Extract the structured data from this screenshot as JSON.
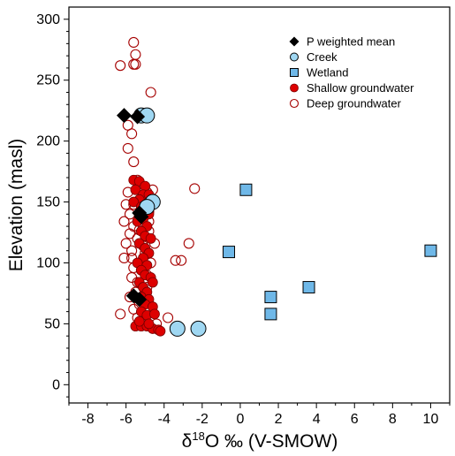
{
  "chart_data": {
    "type": "scatter",
    "xlabel": {
      "delta": "δ",
      "sup": "18",
      "rest": "O ‰ (V-SMOW)"
    },
    "ylabel": "Elevation (masl)",
    "xlim": [
      -9,
      11
    ],
    "ylim": [
      -15,
      310
    ],
    "xticks": [
      -8,
      -6,
      -4,
      -2,
      0,
      2,
      4,
      6,
      8,
      10
    ],
    "yticks": [
      0,
      50,
      100,
      150,
      200,
      250,
      300
    ],
    "legend_position": "top-right",
    "series": [
      {
        "name": "Deep groundwater",
        "marker": "circle-open",
        "color": "#a50000",
        "points": [
          [
            -5.6,
            281
          ],
          [
            -5.5,
            271
          ],
          [
            -5.5,
            263
          ],
          [
            -5.6,
            263
          ],
          [
            -6.3,
            262
          ],
          [
            -4.7,
            240
          ],
          [
            -5.9,
            213
          ],
          [
            -5.7,
            206
          ],
          [
            -5.9,
            194
          ],
          [
            -5.6,
            183
          ],
          [
            -5.4,
            168
          ],
          [
            -5.2,
            163
          ],
          [
            -5.9,
            158
          ],
          [
            -4.9,
            158
          ],
          [
            -4.6,
            160
          ],
          [
            -2.4,
            161
          ],
          [
            -6.0,
            148
          ],
          [
            -5.6,
            148
          ],
          [
            -5.1,
            146
          ],
          [
            -4.8,
            142
          ],
          [
            -5.8,
            140
          ],
          [
            -5.2,
            136
          ],
          [
            -4.8,
            134
          ],
          [
            -6.1,
            134
          ],
          [
            -5.6,
            130
          ],
          [
            -5.3,
            127
          ],
          [
            -4.8,
            126
          ],
          [
            -5.8,
            124
          ],
          [
            -5.4,
            120
          ],
          [
            -4.5,
            116
          ],
          [
            -6.0,
            116
          ],
          [
            -5.1,
            114
          ],
          [
            -5.7,
            110
          ],
          [
            -2.7,
            116
          ],
          [
            -5.0,
            108
          ],
          [
            -6.1,
            104
          ],
          [
            -5.7,
            104
          ],
          [
            -3.4,
            102
          ],
          [
            -3.1,
            102
          ],
          [
            -5.3,
            100
          ],
          [
            -4.7,
            100
          ],
          [
            -5.6,
            96
          ],
          [
            -5.2,
            94
          ],
          [
            -4.9,
            90
          ],
          [
            -5.7,
            88
          ],
          [
            -5.4,
            84
          ],
          [
            -4.9,
            80
          ],
          [
            -5.5,
            76
          ],
          [
            -5.8,
            72
          ],
          [
            -5.1,
            70
          ],
          [
            -5.3,
            66
          ],
          [
            -5.6,
            62
          ],
          [
            -4.8,
            60
          ],
          [
            -6.3,
            58
          ],
          [
            -5.0,
            57
          ],
          [
            -5.4,
            55
          ],
          [
            -3.8,
            55
          ],
          [
            -4.4,
            50
          ],
          [
            -5.1,
            50
          ]
        ]
      },
      {
        "name": "Shallow groundwater",
        "marker": "circle-filled",
        "color": "#dd0000",
        "points": [
          [
            -5.6,
            168
          ],
          [
            -5.3,
            167
          ],
          [
            -5.0,
            163
          ],
          [
            -5.5,
            160
          ],
          [
            -5.1,
            156
          ],
          [
            -4.8,
            156
          ],
          [
            -5.3,
            152
          ],
          [
            -5.6,
            150
          ],
          [
            -5.2,
            146
          ],
          [
            -5.0,
            143
          ],
          [
            -4.8,
            140
          ],
          [
            -5.1,
            136
          ],
          [
            -5.4,
            134
          ],
          [
            -4.9,
            130
          ],
          [
            -5.2,
            126
          ],
          [
            -5.0,
            122
          ],
          [
            -4.7,
            120
          ],
          [
            -5.3,
            116
          ],
          [
            -5.0,
            112
          ],
          [
            -4.8,
            108
          ],
          [
            -5.1,
            104
          ],
          [
            -5.4,
            100
          ],
          [
            -4.9,
            98
          ],
          [
            -5.2,
            94
          ],
          [
            -5.0,
            90
          ],
          [
            -4.7,
            88
          ],
          [
            -5.3,
            84
          ],
          [
            -4.6,
            84
          ],
          [
            -5.1,
            80
          ],
          [
            -4.9,
            76
          ],
          [
            -5.2,
            72
          ],
          [
            -4.8,
            70
          ],
          [
            -5.0,
            66
          ],
          [
            -4.6,
            64
          ],
          [
            -5.2,
            60
          ],
          [
            -4.9,
            57
          ],
          [
            -4.5,
            58
          ],
          [
            -5.5,
            48
          ],
          [
            -5.2,
            48
          ],
          [
            -4.9,
            48
          ],
          [
            -4.6,
            46
          ],
          [
            -4.3,
            45
          ],
          [
            -4.2,
            44
          ],
          [
            -4.8,
            50
          ],
          [
            -5.3,
            52
          ]
        ]
      },
      {
        "name": "Creek",
        "marker": "circle-large",
        "color": "#9fd7f2",
        "points": [
          [
            -5.2,
            221
          ],
          [
            -4.9,
            221
          ],
          [
            -4.6,
            150
          ],
          [
            -4.9,
            146
          ],
          [
            -3.3,
            46
          ],
          [
            -2.2,
            46
          ]
        ]
      },
      {
        "name": "Wetland",
        "marker": "square",
        "color": "#6fb8e8",
        "points": [
          [
            0.3,
            160
          ],
          [
            -0.6,
            109
          ],
          [
            10.0,
            110
          ],
          [
            1.6,
            72
          ],
          [
            3.6,
            80
          ],
          [
            1.6,
            58
          ]
        ]
      },
      {
        "name": "P weighted mean",
        "marker": "diamond",
        "color": "#000000",
        "points": [
          [
            -6.1,
            221
          ],
          [
            -5.4,
            220
          ],
          [
            -5.3,
            141
          ],
          [
            -5.2,
            138
          ],
          [
            -5.6,
            73
          ],
          [
            -5.3,
            70
          ]
        ]
      }
    ],
    "legend_order": [
      "P weighted mean",
      "Creek",
      "Wetland",
      "Shallow groundwater",
      "Deep groundwater"
    ]
  }
}
